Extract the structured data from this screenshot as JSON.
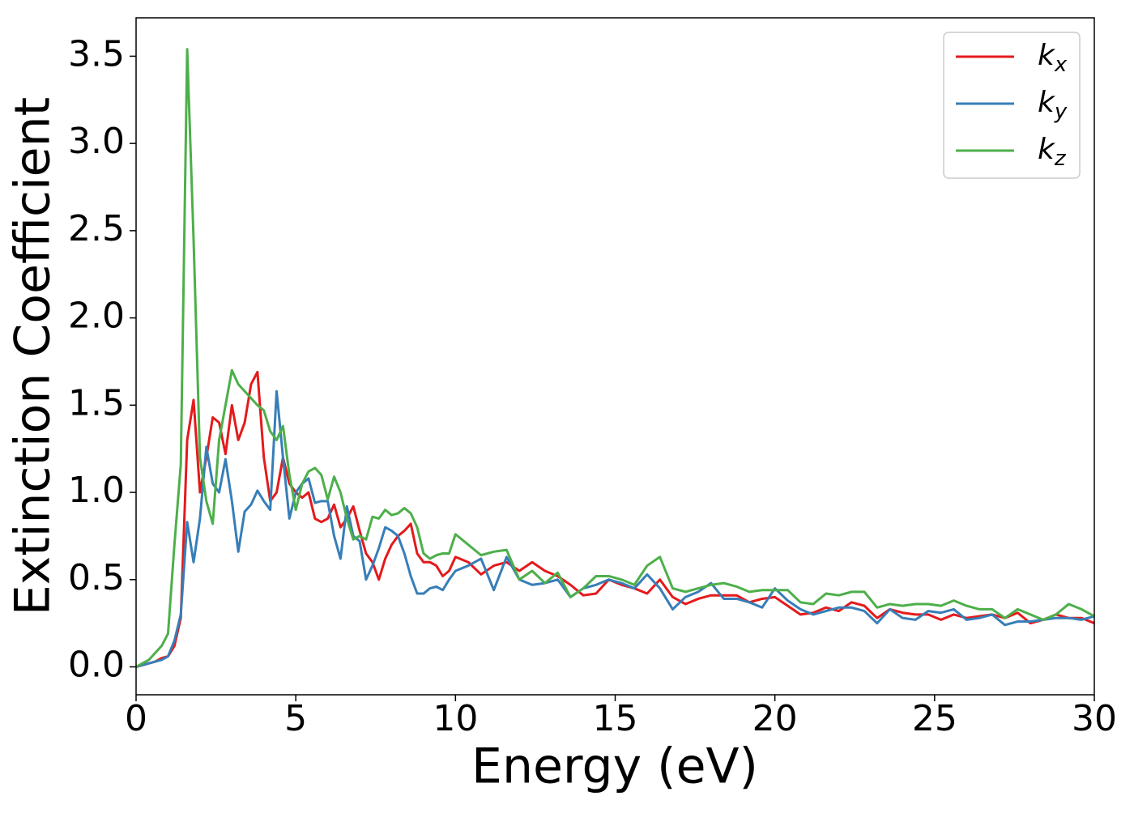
{
  "chart_data": {
    "type": "line",
    "xlabel": "Energy (eV)",
    "ylabel": "Extinction Coefficient",
    "x": [
      0,
      0.2,
      0.4,
      0.6,
      0.8,
      1,
      1.2,
      1.4,
      1.6,
      1.8,
      2,
      2.2,
      2.4,
      2.6,
      2.8,
      3,
      3.2,
      3.4,
      3.6,
      3.8,
      4,
      4.2,
      4.4,
      4.6,
      4.8,
      5,
      5.2,
      5.4,
      5.6,
      5.8,
      6,
      6.2,
      6.4,
      6.6,
      6.8,
      7,
      7.2,
      7.4,
      7.6,
      7.8,
      8,
      8.2,
      8.4,
      8.6,
      8.8,
      9,
      9.2,
      9.4,
      9.6,
      9.8,
      10,
      10.4,
      10.8,
      11.2,
      11.6,
      12,
      12.4,
      12.8,
      13.2,
      13.6,
      14,
      14.4,
      14.8,
      15.2,
      15.6,
      16,
      16.4,
      16.8,
      17.2,
      17.6,
      18,
      18.4,
      18.8,
      19.2,
      19.6,
      20,
      20.4,
      20.8,
      21.2,
      21.6,
      22,
      22.4,
      22.8,
      23.2,
      23.6,
      24,
      24.4,
      24.8,
      25.2,
      25.6,
      26,
      26.4,
      26.8,
      27.2,
      27.6,
      28,
      28.4,
      28.8,
      29.2,
      29.6,
      30
    ],
    "series": [
      {
        "name": "kx",
        "color": "#e41a1c",
        "values": [
          0,
          0.01,
          0.02,
          0.03,
          0.05,
          0.06,
          0.12,
          0.28,
          1.3,
          1.53,
          1.0,
          1.2,
          1.43,
          1.4,
          1.22,
          1.5,
          1.3,
          1.4,
          1.62,
          1.69,
          1.2,
          0.95,
          1.0,
          1.2,
          1.05,
          1.0,
          0.97,
          1.0,
          0.85,
          0.83,
          0.85,
          0.93,
          0.8,
          0.85,
          0.92,
          0.78,
          0.65,
          0.6,
          0.5,
          0.62,
          0.7,
          0.75,
          0.78,
          0.82,
          0.65,
          0.6,
          0.6,
          0.58,
          0.52,
          0.55,
          0.63,
          0.6,
          0.53,
          0.58,
          0.6,
          0.55,
          0.6,
          0.55,
          0.52,
          0.47,
          0.41,
          0.42,
          0.5,
          0.47,
          0.45,
          0.42,
          0.5,
          0.4,
          0.36,
          0.39,
          0.41,
          0.41,
          0.41,
          0.37,
          0.39,
          0.4,
          0.35,
          0.3,
          0.31,
          0.34,
          0.32,
          0.37,
          0.35,
          0.28,
          0.33,
          0.31,
          0.3,
          0.3,
          0.27,
          0.3,
          0.28,
          0.29,
          0.3,
          0.28,
          0.31,
          0.25,
          0.27,
          0.3,
          0.28,
          0.28,
          0.25
        ]
      },
      {
        "name": "ky",
        "color": "#377eb8",
        "values": [
          0,
          0.01,
          0.02,
          0.03,
          0.04,
          0.06,
          0.15,
          0.3,
          0.83,
          0.6,
          0.85,
          1.26,
          1.05,
          1.0,
          1.19,
          0.95,
          0.66,
          0.89,
          0.93,
          1.01,
          0.95,
          0.9,
          1.58,
          1.2,
          0.85,
          1.0,
          1.05,
          1.08,
          0.94,
          0.95,
          0.95,
          0.75,
          0.62,
          0.92,
          0.75,
          0.72,
          0.5,
          0.58,
          0.68,
          0.8,
          0.78,
          0.75,
          0.65,
          0.52,
          0.42,
          0.42,
          0.45,
          0.46,
          0.44,
          0.5,
          0.55,
          0.58,
          0.62,
          0.44,
          0.63,
          0.5,
          0.47,
          0.48,
          0.5,
          0.4,
          0.45,
          0.47,
          0.5,
          0.48,
          0.45,
          0.53,
          0.45,
          0.33,
          0.4,
          0.43,
          0.48,
          0.39,
          0.39,
          0.37,
          0.34,
          0.45,
          0.38,
          0.33,
          0.3,
          0.32,
          0.34,
          0.34,
          0.32,
          0.25,
          0.33,
          0.28,
          0.27,
          0.32,
          0.31,
          0.33,
          0.27,
          0.28,
          0.3,
          0.24,
          0.26,
          0.26,
          0.27,
          0.28,
          0.28,
          0.27,
          0.29
        ]
      },
      {
        "name": "kz",
        "color": "#4daf4a",
        "values": [
          0,
          0.02,
          0.04,
          0.08,
          0.12,
          0.19,
          0.7,
          1.16,
          3.54,
          2.45,
          1.2,
          0.95,
          0.82,
          1.3,
          1.5,
          1.7,
          1.62,
          1.58,
          1.54,
          1.5,
          1.47,
          1.35,
          1.3,
          1.38,
          1.1,
          0.9,
          1.05,
          1.12,
          1.14,
          1.1,
          0.96,
          1.09,
          1.0,
          0.85,
          0.73,
          0.75,
          0.73,
          0.86,
          0.85,
          0.9,
          0.87,
          0.88,
          0.91,
          0.88,
          0.8,
          0.65,
          0.62,
          0.64,
          0.65,
          0.65,
          0.76,
          0.7,
          0.64,
          0.66,
          0.67,
          0.5,
          0.55,
          0.48,
          0.54,
          0.4,
          0.45,
          0.52,
          0.52,
          0.5,
          0.47,
          0.58,
          0.63,
          0.45,
          0.43,
          0.45,
          0.47,
          0.48,
          0.46,
          0.43,
          0.44,
          0.44,
          0.44,
          0.37,
          0.36,
          0.42,
          0.41,
          0.43,
          0.43,
          0.34,
          0.36,
          0.35,
          0.36,
          0.36,
          0.35,
          0.38,
          0.35,
          0.33,
          0.33,
          0.28,
          0.33,
          0.3,
          0.27,
          0.3,
          0.36,
          0.33,
          0.29
        ]
      }
    ],
    "xlim": [
      0,
      30
    ],
    "xticks": [
      0,
      5,
      10,
      15,
      20,
      25,
      30
    ],
    "ylim": [
      -0.16,
      3.72
    ],
    "yticks": [
      {
        "value": 0,
        "label": "0.0"
      },
      0.5,
      {
        "value": 1,
        "label": "1.0"
      },
      1.5,
      {
        "value": 2,
        "label": "2.0"
      },
      2.5,
      {
        "value": 3,
        "label": "3.0"
      },
      3.5
    ],
    "legend": "upper right",
    "grid": false
  }
}
